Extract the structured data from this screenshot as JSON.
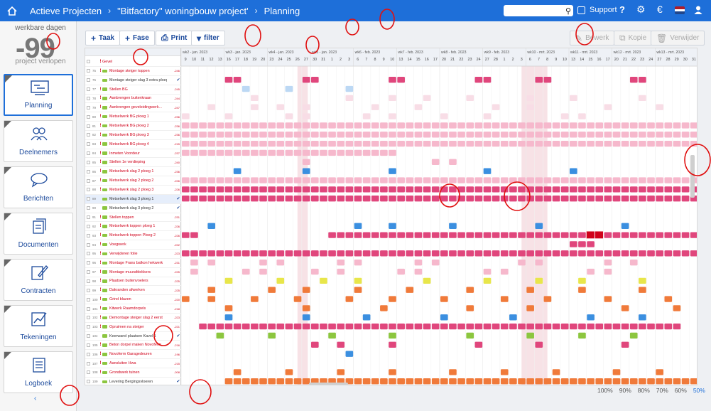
{
  "topbar": {
    "breadcrumbs": [
      "Actieve Projecten",
      "\"Bitfactory\" woningbouw project'",
      "Planning"
    ],
    "search": {
      "placeholder": "",
      "value": ""
    },
    "support_label": "Support",
    "help_label": "?",
    "icons": [
      "home-icon",
      "search-icon",
      "help-icon",
      "gear-icon",
      "euro-icon",
      "flag-nl-icon",
      "user-icon"
    ],
    "flag_colors": [
      "#ae1c28",
      "#ffffff",
      "#21468b"
    ]
  },
  "left": {
    "days_label": "werkbare dagen",
    "days_value": "-99",
    "status_label": "project verlopen",
    "nav": [
      {
        "label": "Planning",
        "icon": "planning-icon",
        "active": true
      },
      {
        "label": "Deelnemers",
        "icon": "people-icon",
        "active": false
      },
      {
        "label": "Berichten",
        "icon": "chat-icon",
        "active": false
      },
      {
        "label": "Documenten",
        "icon": "documents-icon",
        "active": false
      },
      {
        "label": "Contracten",
        "icon": "contract-icon",
        "active": false
      },
      {
        "label": "Tekeningen",
        "icon": "drawing-icon",
        "active": false
      },
      {
        "label": "Logboek",
        "icon": "logbook-icon",
        "active": false
      }
    ]
  },
  "toolbar": {
    "add_task": "Taak",
    "add_phase": "Fase",
    "print": "Print",
    "filter": "filter",
    "edit": "Bewerk",
    "copy": "Kopie",
    "delete": "Verwijder"
  },
  "grid": {
    "first_row": "Gevel",
    "weeks": [
      "wk2 - jan. 2023",
      "wk3 - jan. 2023",
      "wk4 - jan. 2023",
      "wk5 - jan. 2023",
      "wk6 - feb. 2023",
      "wk7 - feb. 2023",
      "wk8 - feb. 2023",
      "wk9 - feb. 2023",
      "wk10 - mrt. 2023",
      "wk11 - mrt. 2023",
      "wk12 - mrt. 2023",
      "wk13 - mrt. 2023"
    ],
    "days": [
      "9",
      "10",
      "11",
      "12",
      "13",
      "16",
      "17",
      "18",
      "19",
      "20",
      "23",
      "24",
      "25",
      "26",
      "27",
      "30",
      "31",
      "1",
      "2",
      "3",
      "6",
      "7",
      "8",
      "9",
      "10",
      "13",
      "14",
      "15",
      "16",
      "17",
      "20",
      "21",
      "22",
      "23",
      "24",
      "27",
      "28",
      "1",
      "2",
      "3",
      "6",
      "7",
      "8",
      "9",
      "10",
      "13",
      "14",
      "15",
      "16",
      "17",
      "20",
      "21",
      "22",
      "23",
      "24",
      "27",
      "28",
      "29",
      "30",
      "31"
    ],
    "tasks": [
      {
        "id": "75",
        "name": "Montage steiger toppen",
        "val": "-246",
        "red": true,
        "check": false,
        "sel": false
      },
      {
        "id": "76",
        "name": "Montage steiger slag 3 extra ploeg",
        "val": "",
        "red": false,
        "check": true,
        "sel": false
      },
      {
        "id": "77",
        "name": "Stellen BG",
        "val": "-245",
        "red": true,
        "check": false,
        "sel": false
      },
      {
        "id": "78",
        "name": "Aanbrengen buitenkraan",
        "val": "-244",
        "red": true,
        "check": false,
        "sel": false
      },
      {
        "id": "79",
        "name": "Aanbrengen geveleidingwerk...",
        "val": "-247",
        "red": true,
        "check": false,
        "sel": false
      },
      {
        "id": "80",
        "name": "Metselwerk BG ploeg 1",
        "val": "-236",
        "red": true,
        "check": false,
        "sel": false
      },
      {
        "id": "81",
        "name": "Metselwerk BG ploeg 2",
        "val": "-236",
        "red": true,
        "check": false,
        "sel": false
      },
      {
        "id": "82",
        "name": "Metselwerk BG ploeg 3",
        "val": "-236",
        "red": true,
        "check": false,
        "sel": false
      },
      {
        "id": "83",
        "name": "Metselwerk BG ploeg 4",
        "val": "-215",
        "red": true,
        "check": false,
        "sel": false
      },
      {
        "id": "84",
        "name": "Inmeten Voordeur",
        "val": "-237",
        "red": true,
        "check": false,
        "sel": false
      },
      {
        "id": "85",
        "name": "Stellen 1e verdieping",
        "val": "-240",
        "red": true,
        "check": false,
        "sel": false
      },
      {
        "id": "86",
        "name": "Metselwerk slag 2 ploeg 1",
        "val": "-236",
        "red": true,
        "check": false,
        "sel": false
      },
      {
        "id": "87",
        "name": "Metselwerk slag 2 ploeg 2",
        "val": "-226",
        "red": true,
        "check": false,
        "sel": false
      },
      {
        "id": "88",
        "name": "Metselwerk slag 2 ploeg 3",
        "val": "-226",
        "red": true,
        "check": false,
        "sel": false
      },
      {
        "id": "89",
        "name": "Metselwerk slag 3 ploeg 1",
        "val": "",
        "red": false,
        "check": true,
        "sel": true
      },
      {
        "id": "90",
        "name": "Metselwerk slag 3 ploeg 2",
        "val": "",
        "red": false,
        "check": true,
        "sel": false
      },
      {
        "id": "91",
        "name": "Stellen toppen",
        "val": "-231",
        "red": true,
        "check": false,
        "sel": false
      },
      {
        "id": "92",
        "name": "Metselwerk toppen ploeg 1",
        "val": "-226",
        "red": true,
        "check": false,
        "sel": false
      },
      {
        "id": "93",
        "name": "Metselwerk toppen Ploeg 2",
        "val": "-226",
        "red": true,
        "check": false,
        "sel": false
      },
      {
        "id": "94",
        "name": "Voegwerk",
        "val": "-222",
        "red": true,
        "check": false,
        "sel": false
      },
      {
        "id": "95",
        "name": "Verwijderen folie",
        "val": "-223",
        "red": true,
        "check": false,
        "sel": false
      },
      {
        "id": "96",
        "name": "Montage Frans balkon hekwerk",
        "val": "-231",
        "red": true,
        "check": false,
        "sel": false
      },
      {
        "id": "97",
        "name": "Montage muurafdekkers",
        "val": "-225",
        "red": true,
        "check": false,
        "sel": false
      },
      {
        "id": "98",
        "name": "Plaatsen buitenvoelers",
        "val": "-225",
        "red": true,
        "check": false,
        "sel": false
      },
      {
        "id": "99",
        "name": "Dakranden afwerken",
        "val": "-225",
        "red": true,
        "check": false,
        "sel": false
      },
      {
        "id": "100",
        "name": "Grind blazen",
        "val": "-220",
        "red": true,
        "check": false,
        "sel": false
      },
      {
        "id": "101",
        "name": "Kitwerk Raamdorpels",
        "val": "-218",
        "red": true,
        "check": false,
        "sel": false
      },
      {
        "id": "102",
        "name": "Demontage steiger slag 2 eerst",
        "val": "-223",
        "red": true,
        "check": false,
        "sel": false
      },
      {
        "id": "103",
        "name": "Opruimen na steiger",
        "val": "-221",
        "red": true,
        "check": false,
        "sel": false
      },
      {
        "id": "104",
        "name": "Keerwand plaatsen Kavel 1",
        "val": "",
        "red": false,
        "check": true,
        "sel": false
      },
      {
        "id": "105",
        "name": "Beton dorpel maken Novoferm",
        "val": "-216",
        "red": true,
        "check": false,
        "sel": false
      },
      {
        "id": "106",
        "name": "Novoferm Garagedeuren",
        "val": "-196",
        "red": true,
        "check": false,
        "sel": false
      },
      {
        "id": "107",
        "name": "Aansluiten Hwa",
        "val": "-215",
        "red": true,
        "check": false,
        "sel": false
      },
      {
        "id": "108",
        "name": "Grondwerk tuinen",
        "val": "-208",
        "red": true,
        "check": false,
        "sel": false
      },
      {
        "id": "109",
        "name": "Levering Bergingsvloeren",
        "val": "",
        "red": false,
        "check": true,
        "sel": false
      }
    ]
  },
  "zoom": [
    "100%",
    "90%",
    "80%",
    "70%",
    "60%",
    "50%"
  ],
  "zoom_active": "50%",
  "colors": {
    "accent": "#1e6fd9",
    "bar_magenta": "#e0467c",
    "bar_pink": "#f6b8cc",
    "bar_blue": "#3b8fe0",
    "bar_lightblue": "#bcd8f4",
    "bar_orange": "#f07a3a",
    "bar_yellow": "#e8e64a",
    "bar_green": "#8cc63f",
    "bar_pale": "#f8dde6",
    "weekend_shade": "#f7e2e6",
    "annotation": "#e01010"
  }
}
